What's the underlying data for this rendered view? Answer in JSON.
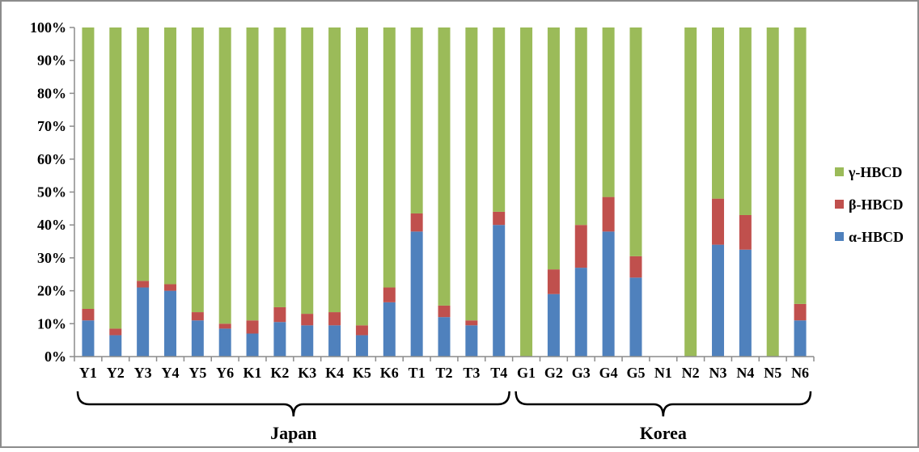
{
  "chart_data": {
    "type": "bar",
    "stacked": true,
    "percent_stacked": true,
    "categories": [
      "Y1",
      "Y2",
      "Y3",
      "Y4",
      "Y5",
      "Y6",
      "K1",
      "K2",
      "K3",
      "K4",
      "K5",
      "K6",
      "T1",
      "T2",
      "T3",
      "T4",
      "G1",
      "G2",
      "G3",
      "G4",
      "G5",
      "N1",
      "N2",
      "N3",
      "N4",
      "N5",
      "N6"
    ],
    "series": [
      {
        "name": "α-HBCD",
        "color": "#4F81BD",
        "values": [
          11,
          6.5,
          21,
          20,
          11,
          8.5,
          7,
          10.5,
          9.5,
          9.5,
          6.5,
          16.5,
          38,
          12,
          9.5,
          40,
          0,
          19,
          27,
          38,
          24,
          0,
          0,
          34,
          32.5,
          0,
          11
        ]
      },
      {
        "name": "β-HBCD",
        "color": "#C0504D",
        "values": [
          3.5,
          2,
          2,
          2,
          2.5,
          1.5,
          4,
          4.5,
          3.5,
          4,
          3,
          4.5,
          5.5,
          3.5,
          1.5,
          4,
          0,
          7.5,
          13,
          10.5,
          6.5,
          0,
          0,
          14,
          10.5,
          0,
          5
        ]
      },
      {
        "name": "γ-HBCD",
        "color": "#9BBB59",
        "values": [
          85.5,
          91.5,
          77,
          78,
          86.5,
          90,
          89,
          85,
          87,
          86.5,
          90.5,
          79,
          56.5,
          84.5,
          89,
          56,
          100,
          73.5,
          60,
          51.5,
          69.5,
          0,
          100,
          52,
          57,
          100,
          84
        ]
      }
    ],
    "y_ticks": [
      "0%",
      "10%",
      "20%",
      "30%",
      "40%",
      "50%",
      "60%",
      "70%",
      "80%",
      "90%",
      "100%"
    ],
    "ylim": [
      0,
      100
    ],
    "legend_position": "right",
    "legend_order": [
      "γ-HBCD",
      "β-HBCD",
      "α-HBCD"
    ],
    "groups": [
      {
        "label": "Japan",
        "from": "Y1",
        "to": "T4"
      },
      {
        "label": "Korea",
        "from": "G1",
        "to": "N6"
      }
    ],
    "grid": false
  }
}
